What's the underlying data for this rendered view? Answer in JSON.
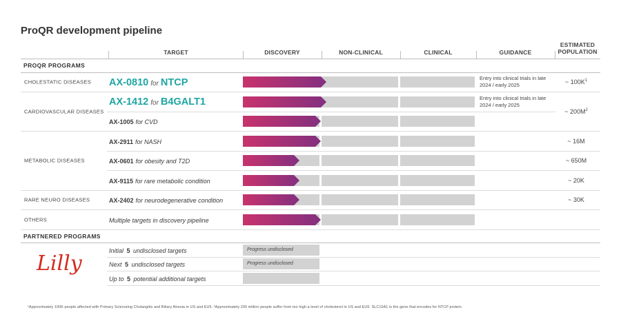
{
  "title": "ProQR development pipeline",
  "headers": {
    "target": "TARGET",
    "discovery": "DISCOVERY",
    "nonclinical": "NON-CLINICAL",
    "clinical": "CLINICAL",
    "guidance": "GUIDANCE",
    "population_line1": "ESTIMATED",
    "population_line2": "POPULATION"
  },
  "sections": {
    "proqr": "PROQR PROGRAMS",
    "partnered": "PARTNERED PROGRAMS"
  },
  "categories": {
    "cholestatic": "CHOLESTATIC DISEASES",
    "cardiovascular": "CARDIOVASCULAR DISEASES",
    "metabolic": "METABOLIC DISEASES",
    "rare_neuro": "RARE NEURO DISEASES",
    "others": "OTHERS"
  },
  "programs": [
    {
      "code": "AX-0810",
      "for": "for",
      "target": "NTCP",
      "progress": 0.36,
      "guidance": "Entry into clinical trials in late 2024 / early 2025",
      "population": "~ 100K",
      "population_sup": "1"
    },
    {
      "code": "AX-1412",
      "for": "for",
      "target": "B4GALT1",
      "progress": 0.36,
      "guidance": "Entry into clinical trials in late 2024 / early 2025"
    },
    {
      "code": "AX-1005",
      "indication": "for CVD",
      "progress": 0.335
    },
    {
      "code": "AX-2911",
      "indication": "for NASH",
      "progress": 0.335,
      "population": "~ 16M"
    },
    {
      "code": "AX-0601",
      "indication": "for obesity and T2D",
      "progress": 0.245,
      "population": "~ 650M"
    },
    {
      "code": "AX-9115",
      "indication": "for rare metabolic condition",
      "progress": 0.245,
      "population": "~ 20K"
    },
    {
      "code": "AX-2402",
      "indication": "for neurodegenerative condition",
      "progress": 0.245,
      "population": "~ 30K"
    },
    {
      "label": "Multiple targets in discovery pipeline",
      "progress": 0.335
    }
  ],
  "cardio_population": "~ 200M",
  "cardio_population_sup": "2",
  "partnered": {
    "logo": "Lilly",
    "rows": [
      {
        "pre": "Initial",
        "n": "5",
        "post": "undisclosed targets",
        "status": "Progress undisclosed"
      },
      {
        "pre": "Next",
        "n": "5",
        "post": "undisclosed targets",
        "status": "Progress undisclosed"
      },
      {
        "pre": "Up to",
        "n": "5",
        "post": "potential additional targets",
        "status": ""
      }
    ]
  },
  "footnote": "¹Approximately 100K people affected with Primary Sclerosing Cholangitis and Biliary Atresia in US and EU5. ²Approximately 200 million people suffer from too high a level of cholesterol in US and EU5. SLC10A1 is the gene that encodes for NTCP protein.",
  "colors": {
    "accent_teal": "#1ea6a2",
    "bar_start": "#c7336d",
    "bar_end": "#83307f",
    "track": "#d2d2d2",
    "lilly_red": "#d52b1e"
  }
}
